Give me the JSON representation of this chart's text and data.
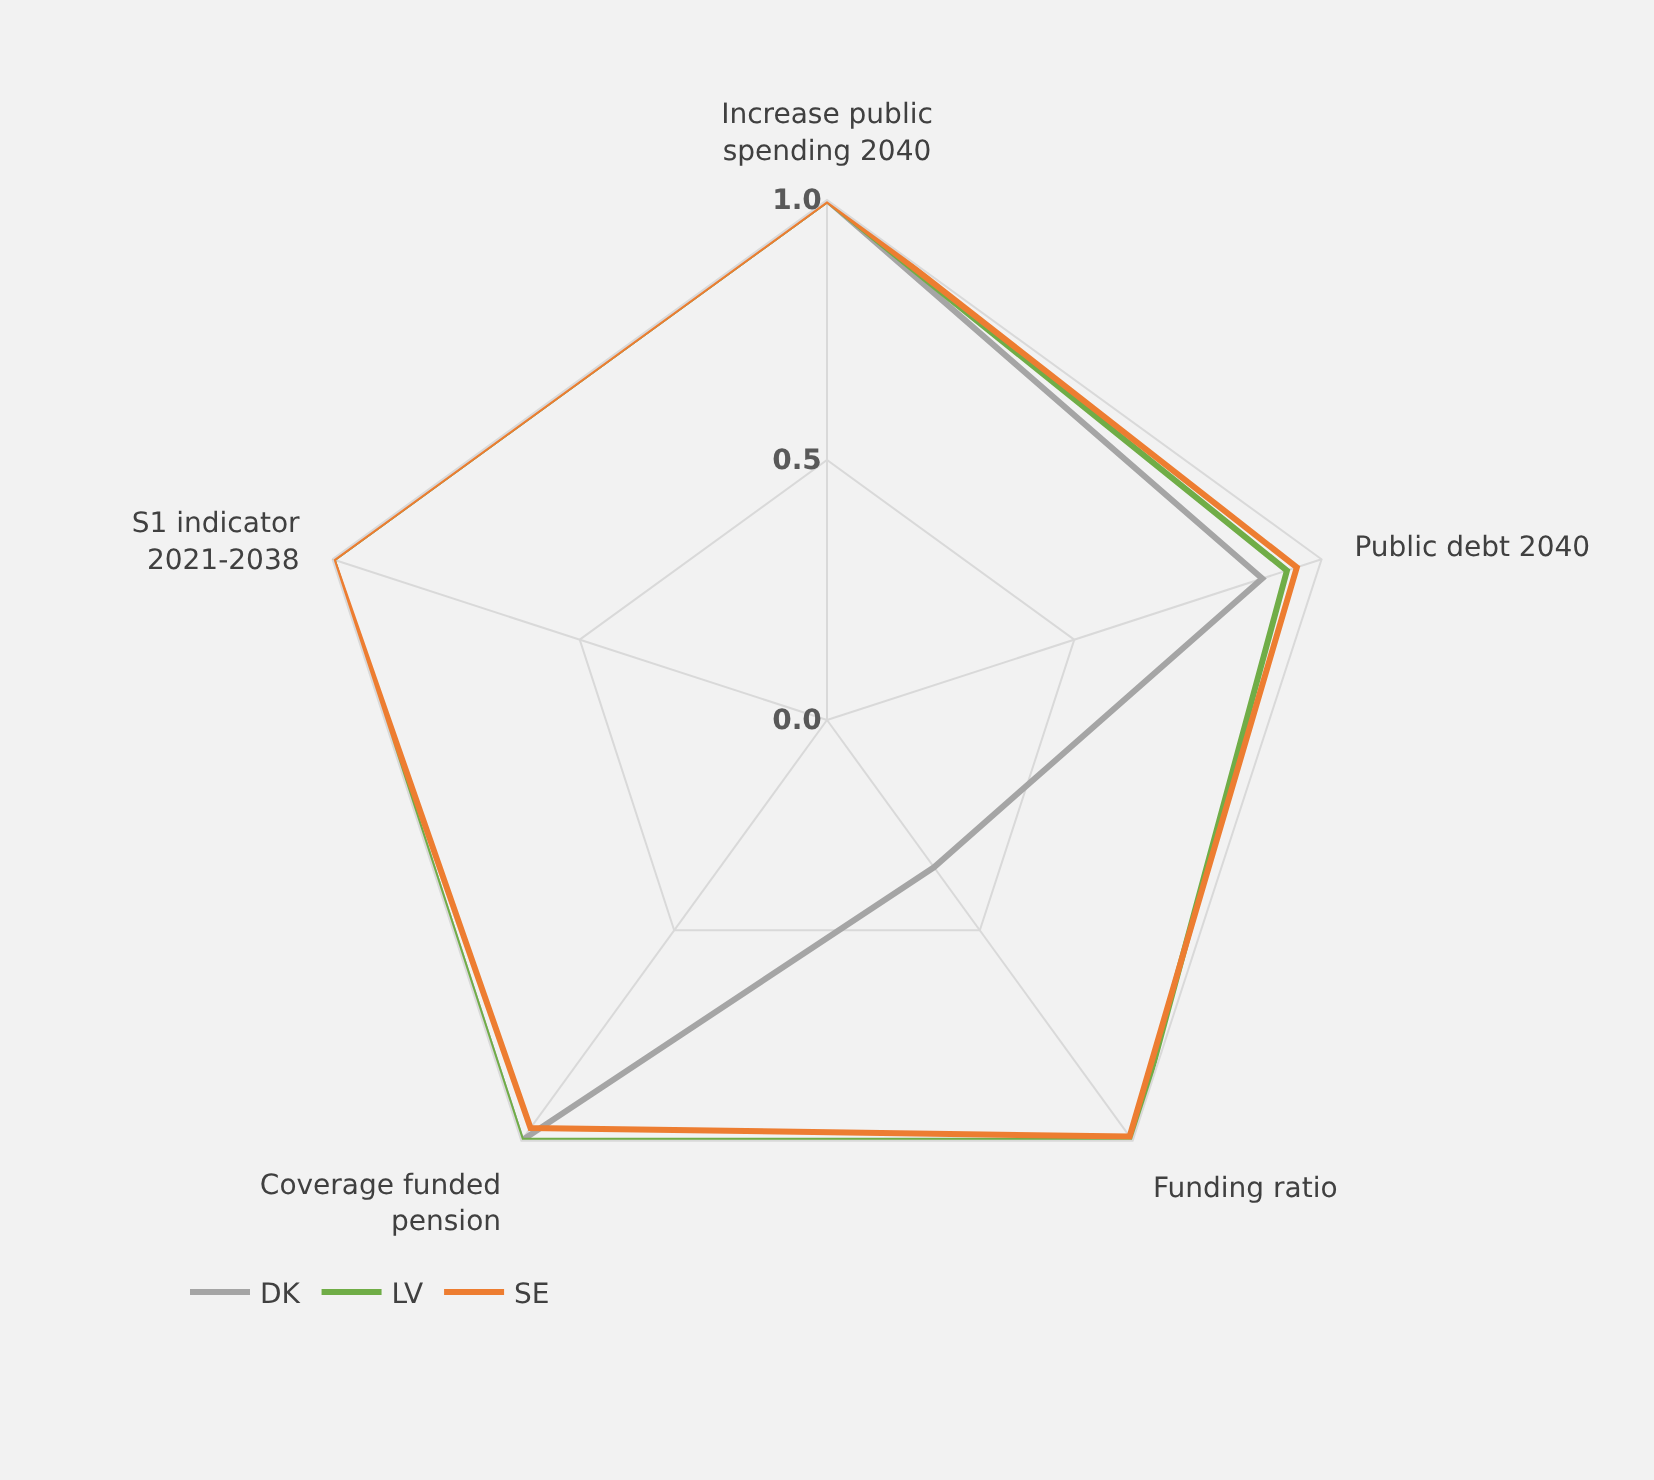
{
  "chart_data": {
    "type": "radar",
    "categories": [
      "Increase public spending 2040",
      "Public debt 2040",
      "Funding ratio",
      "Coverage funded pension",
      "S1 indicator 2021-2038"
    ],
    "series": [
      {
        "name": "DK",
        "color": "#a5a5a5",
        "values": [
          1.0,
          0.88,
          0.35,
          1.0,
          1.0
        ]
      },
      {
        "name": "LV",
        "color": "#70ad47",
        "values": [
          1.0,
          0.93,
          1.0,
          1.0,
          1.0
        ]
      },
      {
        "name": "SE",
        "color": "#ed7d31",
        "values": [
          1.0,
          0.95,
          0.99,
          0.97,
          1.0
        ]
      }
    ],
    "ylim": [
      0,
      1
    ],
    "yticks": [
      {
        "value": 0,
        "label": "0.0"
      },
      {
        "value": 0.5,
        "label": "0.5"
      },
      {
        "value": 1,
        "label": "1.0"
      }
    ],
    "grid": true,
    "legend": "bottom left",
    "marker": "none",
    "line_style": "solid"
  }
}
